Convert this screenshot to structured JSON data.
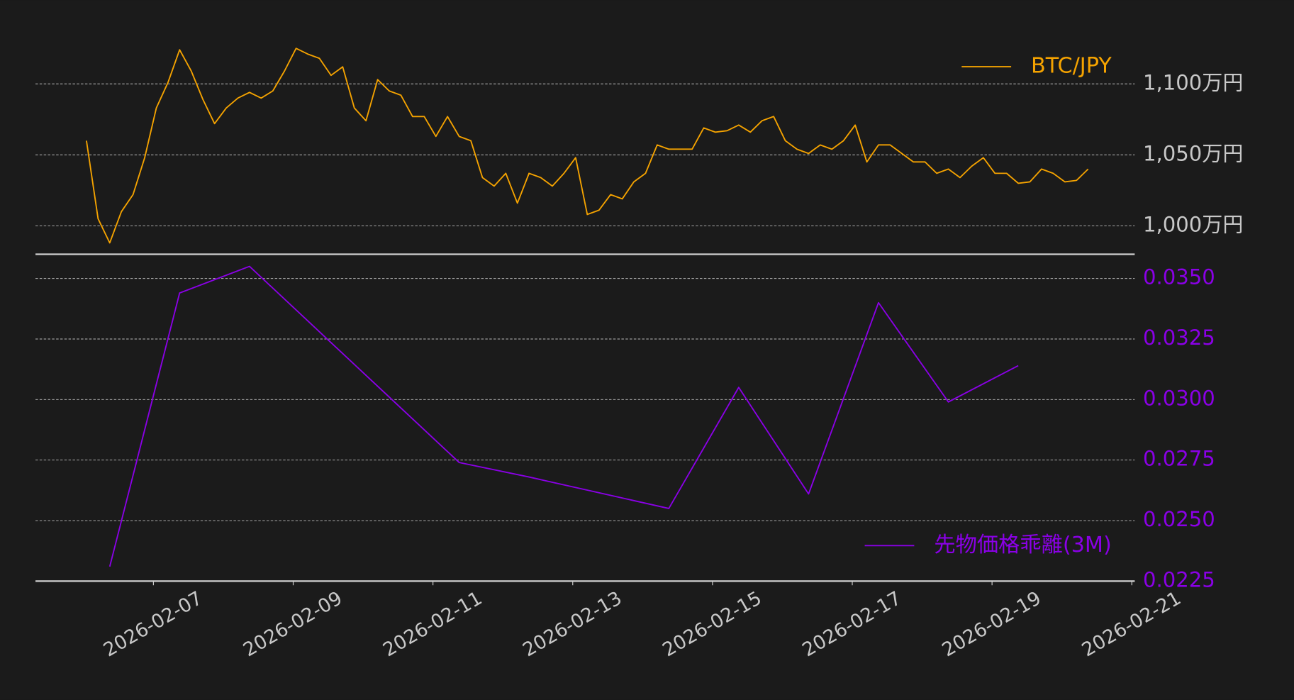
{
  "chart_data": [
    {
      "type": "line",
      "x": [
        "2026-02-06T01:00",
        "2026-02-06T05:00",
        "2026-02-06T09:00",
        "2026-02-06T13:00",
        "2026-02-06T17:00",
        "2026-02-06T21:00",
        "2026-02-07T01:00",
        "2026-02-07T05:00",
        "2026-02-07T09:00",
        "2026-02-07T13:00",
        "2026-02-07T17:00",
        "2026-02-07T21:00",
        "2026-02-08T01:00",
        "2026-02-08T05:00",
        "2026-02-08T09:00",
        "2026-02-08T13:00",
        "2026-02-08T17:00",
        "2026-02-08T21:00",
        "2026-02-09T01:00",
        "2026-02-09T05:00",
        "2026-02-09T09:00",
        "2026-02-09T13:00",
        "2026-02-09T17:00",
        "2026-02-09T21:00",
        "2026-02-10T01:00",
        "2026-02-10T05:00",
        "2026-02-10T09:00",
        "2026-02-10T13:00",
        "2026-02-10T17:00",
        "2026-02-10T21:00",
        "2026-02-11T01:00",
        "2026-02-11T05:00",
        "2026-02-11T09:00",
        "2026-02-11T13:00",
        "2026-02-11T17:00",
        "2026-02-11T21:00",
        "2026-02-12T01:00",
        "2026-02-12T05:00",
        "2026-02-12T09:00",
        "2026-02-12T13:00",
        "2026-02-12T17:00",
        "2026-02-12T21:00",
        "2026-02-13T01:00",
        "2026-02-13T05:00",
        "2026-02-13T09:00",
        "2026-02-13T13:00",
        "2026-02-13T17:00",
        "2026-02-13T21:00",
        "2026-02-14T01:00",
        "2026-02-14T05:00",
        "2026-02-14T09:00",
        "2026-02-14T13:00",
        "2026-02-14T17:00",
        "2026-02-14T21:00",
        "2026-02-15T01:00",
        "2026-02-15T05:00",
        "2026-02-15T09:00",
        "2026-02-15T13:00",
        "2026-02-15T17:00",
        "2026-02-15T21:00",
        "2026-02-16T01:00",
        "2026-02-16T05:00",
        "2026-02-16T09:00",
        "2026-02-16T13:00",
        "2026-02-16T17:00",
        "2026-02-16T21:00",
        "2026-02-17T01:00",
        "2026-02-17T05:00",
        "2026-02-17T09:00",
        "2026-02-17T13:00",
        "2026-02-17T17:00",
        "2026-02-17T21:00",
        "2026-02-18T01:00",
        "2026-02-18T05:00",
        "2026-02-18T09:00",
        "2026-02-18T13:00",
        "2026-02-18T17:00",
        "2026-02-18T21:00",
        "2026-02-19T01:00",
        "2026-02-19T05:00",
        "2026-02-19T09:00",
        "2026-02-19T13:00",
        "2026-02-19T17:00",
        "2026-02-19T21:00",
        "2026-02-20T01:00",
        "2026-02-20T05:00",
        "2026-02-20T09:00"
      ],
      "series": [
        {
          "name": "BTC/JPY",
          "color": "#f5a300",
          "values": [
            1060,
            1005,
            988,
            1010,
            1022,
            1048,
            1083,
            1101,
            1124,
            1109,
            1089,
            1072,
            1083,
            1090,
            1094,
            1090,
            1095,
            1109,
            1125,
            1121,
            1118,
            1106,
            1112,
            1083,
            1074,
            1103,
            1095,
            1092,
            1077,
            1077,
            1063,
            1077,
            1063,
            1060,
            1034,
            1028,
            1037,
            1016,
            1037,
            1034,
            1028,
            1037,
            1048,
            1008,
            1011,
            1022,
            1019,
            1031,
            1037,
            1057,
            1054,
            1054,
            1054,
            1069,
            1066,
            1067,
            1071,
            1066,
            1074,
            1077,
            1060,
            1054,
            1051,
            1057,
            1054,
            1060,
            1071,
            1045,
            1057,
            1057,
            1051,
            1045,
            1045,
            1037,
            1040,
            1034,
            1042,
            1048,
            1037,
            1037,
            1030,
            1031,
            1040,
            1037,
            1031,
            1032,
            1040
          ]
        }
      ],
      "xlim": [
        "2026-02-05T07:30",
        "2026-02-21T01:00"
      ],
      "ylim": [
        980,
        1140
      ],
      "yticks": [
        {
          "value": 1000,
          "label": "1,000万円"
        },
        {
          "value": 1050,
          "label": "1,050万円"
        },
        {
          "value": 1100,
          "label": "1,100万円"
        }
      ],
      "ytick_color": "#c8c8c8",
      "grid": true,
      "legend": "upper right"
    },
    {
      "type": "line",
      "x": [
        "2026-02-06T09:00",
        "2026-02-07T09:00",
        "2026-02-08T09:00",
        "2026-02-11T09:00",
        "2026-02-12T09:00",
        "2026-02-14T09:00",
        "2026-02-15T09:00",
        "2026-02-16T09:00",
        "2026-02-17T09:00",
        "2026-02-18T09:00",
        "2026-02-19T09:00"
      ],
      "series": [
        {
          "name": "先物価格乖離(3M)",
          "color": "#8a00e6",
          "values": [
            0.0231,
            0.0344,
            0.0355,
            0.0274,
            0.0268,
            0.0255,
            0.0305,
            0.0261,
            0.034,
            0.0299,
            0.0314
          ]
        }
      ],
      "xlim": [
        "2026-02-05T07:30",
        "2026-02-21T01:00"
      ],
      "xticks": [
        "2026-02-07",
        "2026-02-09",
        "2026-02-11",
        "2026-02-13",
        "2026-02-15",
        "2026-02-17",
        "2026-02-19",
        "2026-02-21"
      ],
      "ylim": [
        0.0225,
        0.036
      ],
      "yticks": [
        0.0225,
        {
          "value": 0.025,
          "label": "0.0250"
        },
        0.0275,
        {
          "value": 0.03,
          "label": "0.0300"
        },
        0.0325,
        {
          "value": 0.035,
          "label": "0.0350"
        }
      ],
      "ytick_color": "#8a00e6",
      "grid": true,
      "legend": "lower right"
    }
  ]
}
